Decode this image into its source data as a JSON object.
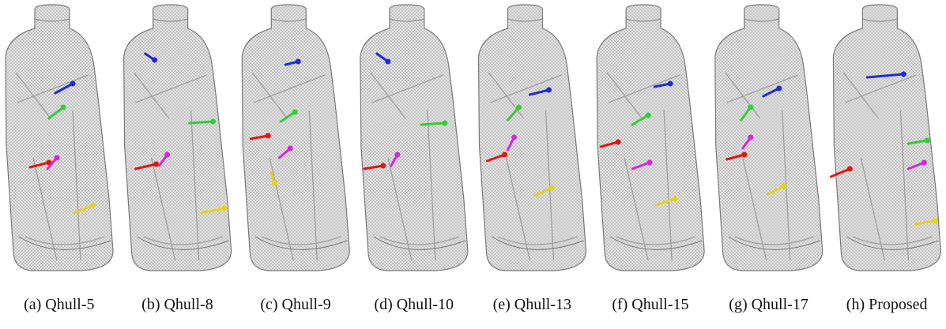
{
  "figure": {
    "captions": [
      "(a) Qhull-5",
      "(b) Qhull-8",
      "(c) Qhull-9",
      "(d) Qhull-10",
      "(e) Qhull-13",
      "(f) Qhull-15",
      "(g) Qhull-17",
      "(h) Proposed"
    ]
  }
}
